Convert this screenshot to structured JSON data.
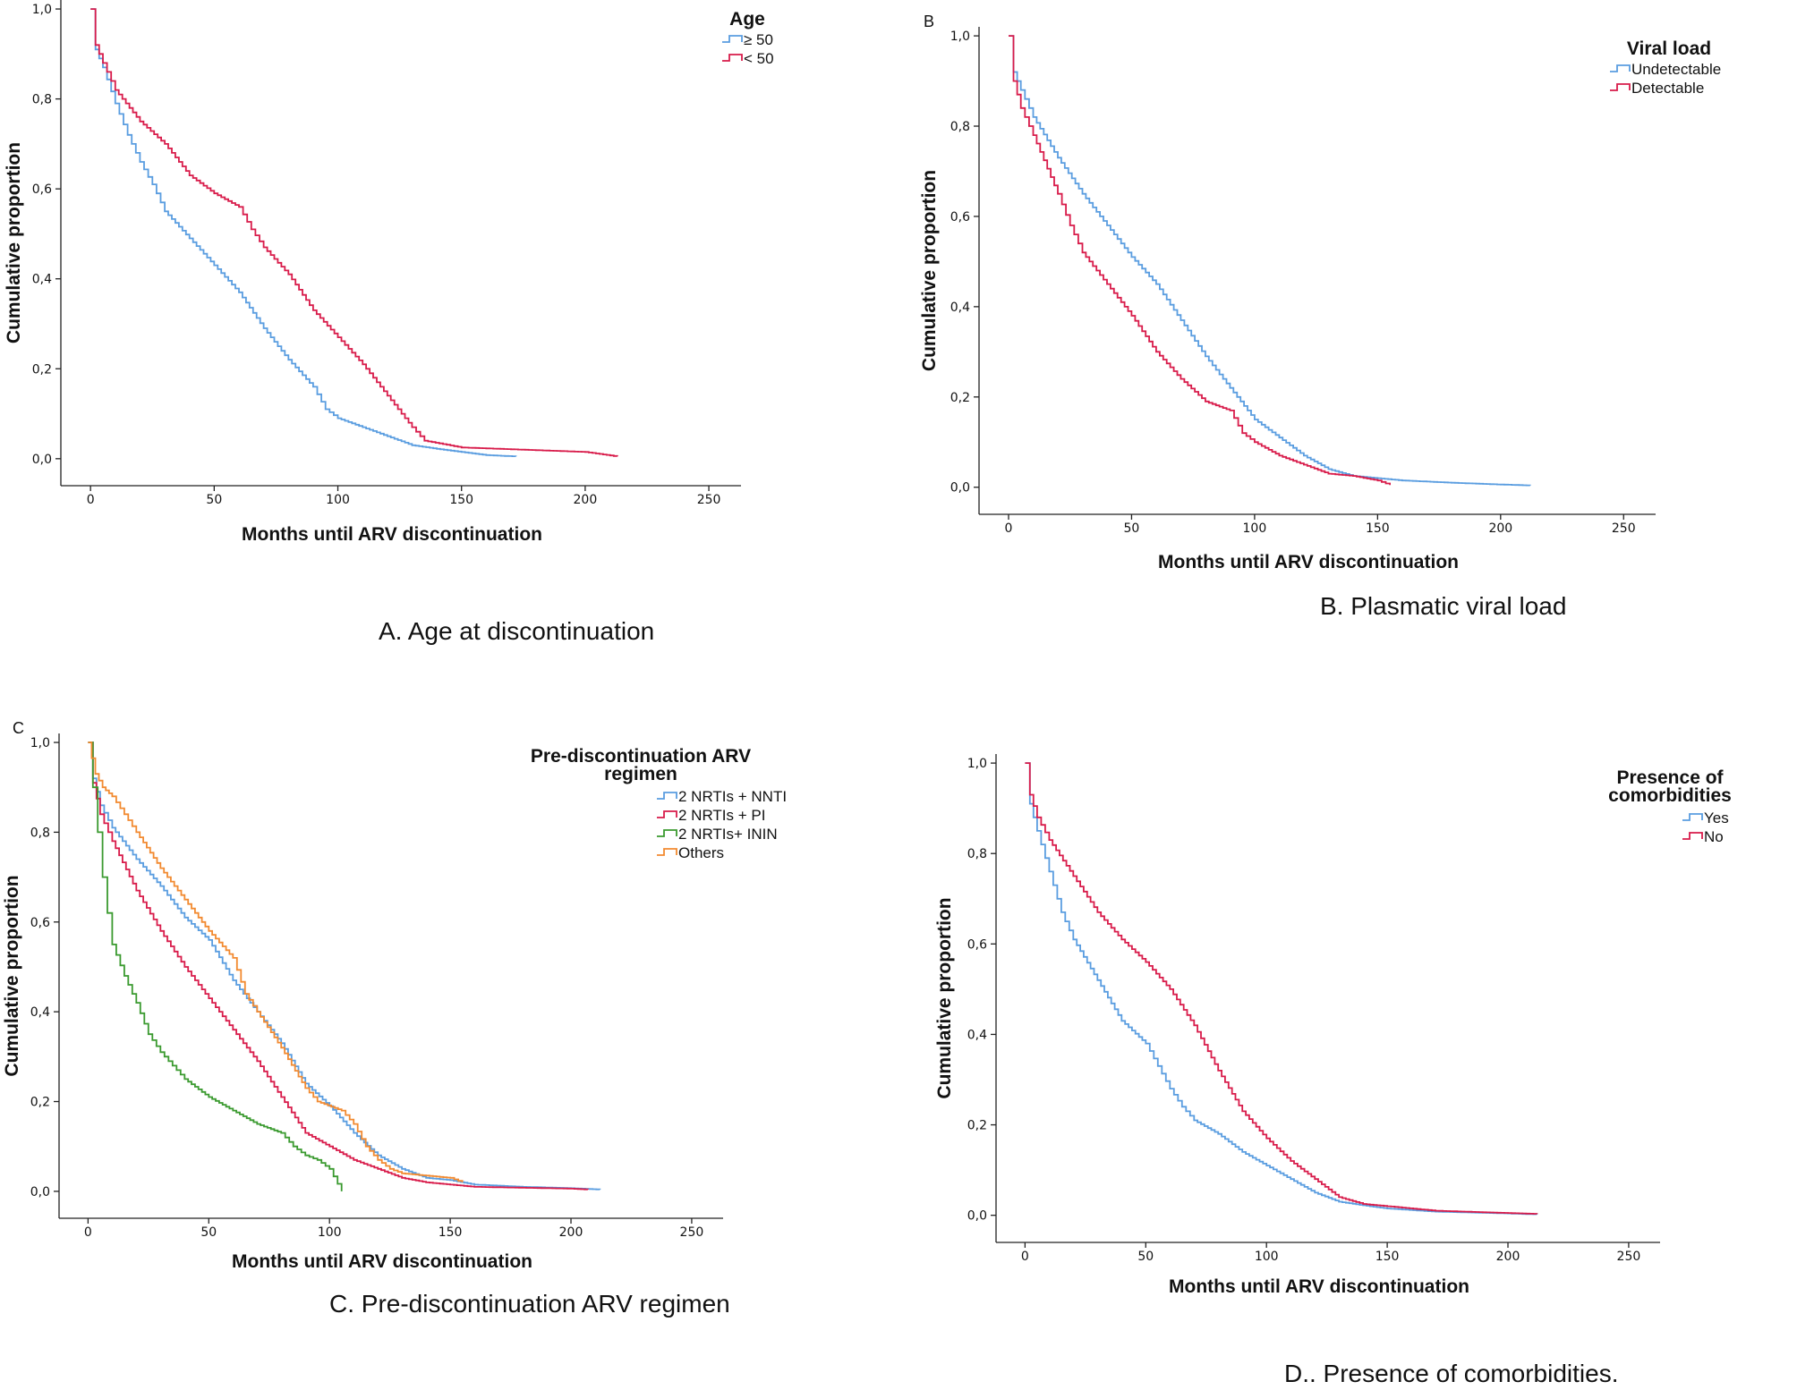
{
  "colors": {
    "blue": "#5a9de0",
    "red": "#d81b4a",
    "green": "#3a9a2f",
    "orange": "#f28a30"
  },
  "chart_data": [
    {
      "type": "line",
      "step": true,
      "panel_letter": "",
      "caption": "A.   Age at discontinuation",
      "xlabel": "Months until ARV discontinuation",
      "ylabel": "Cumulative proportion",
      "xlim": [
        -12,
        263
      ],
      "ylim": [
        -0.06,
        1.02
      ],
      "x_ticks": [
        "0",
        "50",
        "100",
        "150",
        "200",
        "250"
      ],
      "y_ticks": [
        "0,0",
        "0,2",
        "0,4",
        "0,6",
        "0,8",
        "1,0"
      ],
      "legend": {
        "title": "Age",
        "position": "top-right"
      },
      "series": [
        {
          "name": "≥ 50",
          "color": "blue",
          "x": [
            0,
            2,
            5,
            10,
            15,
            20,
            25,
            30,
            40,
            50,
            60,
            70,
            80,
            90,
            95,
            100,
            110,
            120,
            130,
            140,
            150,
            160,
            172
          ],
          "y": [
            1.0,
            0.91,
            0.87,
            0.79,
            0.72,
            0.66,
            0.61,
            0.55,
            0.49,
            0.43,
            0.37,
            0.29,
            0.22,
            0.16,
            0.11,
            0.09,
            0.07,
            0.05,
            0.03,
            0.022,
            0.015,
            0.008,
            0.005
          ]
        },
        {
          "name": "< 50",
          "color": "red",
          "x": [
            0,
            2,
            5,
            10,
            20,
            30,
            40,
            50,
            60,
            65,
            70,
            80,
            90,
            100,
            110,
            120,
            130,
            135,
            150,
            200,
            213
          ],
          "y": [
            1.0,
            0.92,
            0.88,
            0.82,
            0.75,
            0.7,
            0.63,
            0.59,
            0.56,
            0.51,
            0.47,
            0.41,
            0.33,
            0.27,
            0.21,
            0.14,
            0.07,
            0.04,
            0.025,
            0.015,
            0.005
          ]
        }
      ]
    },
    {
      "type": "line",
      "step": true,
      "panel_letter": "B",
      "caption": "B. Plasmatic viral load",
      "xlabel": "Months until ARV discontinuation",
      "ylabel": "Cumulative proportion",
      "xlim": [
        -12,
        263
      ],
      "ylim": [
        -0.06,
        1.02
      ],
      "x_ticks": [
        "0",
        "50",
        "100",
        "150",
        "200",
        "250"
      ],
      "y_ticks": [
        "0,0",
        "0,2",
        "0,4",
        "0,6",
        "0,8",
        "1,0"
      ],
      "legend": {
        "title": "Viral load",
        "position": "top-right"
      },
      "series": [
        {
          "name": "Undetectable",
          "color": "blue",
          "x": [
            0,
            2,
            5,
            10,
            20,
            30,
            40,
            50,
            60,
            70,
            80,
            90,
            100,
            110,
            120,
            130,
            140,
            150,
            160,
            180,
            200,
            212
          ],
          "y": [
            1.0,
            0.92,
            0.88,
            0.82,
            0.73,
            0.65,
            0.58,
            0.51,
            0.45,
            0.37,
            0.29,
            0.22,
            0.15,
            0.11,
            0.07,
            0.04,
            0.025,
            0.02,
            0.015,
            0.01,
            0.006,
            0.004
          ]
        },
        {
          "name": "Detectable",
          "color": "red",
          "x": [
            0,
            2,
            5,
            10,
            20,
            25,
            30,
            40,
            50,
            60,
            70,
            80,
            90,
            95,
            100,
            110,
            120,
            130,
            140,
            150,
            155
          ],
          "y": [
            1.0,
            0.9,
            0.84,
            0.78,
            0.65,
            0.58,
            0.52,
            0.45,
            0.38,
            0.3,
            0.24,
            0.19,
            0.17,
            0.12,
            0.1,
            0.07,
            0.05,
            0.03,
            0.025,
            0.015,
            0.005
          ]
        }
      ]
    },
    {
      "type": "line",
      "step": true,
      "panel_letter": "C",
      "caption": "C.   Pre-discontinuation ARV regimen",
      "xlabel": "Months until ARV discontinuation",
      "ylabel": "Cumulative proportion",
      "xlim": [
        -12,
        263
      ],
      "ylim": [
        -0.06,
        1.02
      ],
      "x_ticks": [
        "0",
        "50",
        "100",
        "150",
        "200",
        "250"
      ],
      "y_ticks": [
        "0,0",
        "0,2",
        "0,4",
        "0,6",
        "0,8",
        "1,0"
      ],
      "legend": {
        "title": "Pre-discontinuation ARV regimen",
        "position": "top-right"
      },
      "series": [
        {
          "name": "2 NRTIs + NNTI",
          "color": "blue",
          "x": [
            0,
            2,
            5,
            10,
            20,
            30,
            40,
            50,
            60,
            70,
            80,
            90,
            100,
            110,
            120,
            130,
            140,
            150,
            160,
            180,
            200,
            212
          ],
          "y": [
            1.0,
            0.92,
            0.86,
            0.81,
            0.74,
            0.68,
            0.61,
            0.56,
            0.47,
            0.4,
            0.33,
            0.24,
            0.19,
            0.13,
            0.08,
            0.05,
            0.03,
            0.025,
            0.015,
            0.01,
            0.007,
            0.004
          ]
        },
        {
          "name": "2 NRTIs + PI",
          "color": "red",
          "x": [
            0,
            2,
            5,
            10,
            20,
            30,
            40,
            50,
            60,
            70,
            80,
            90,
            100,
            110,
            120,
            130,
            140,
            150,
            160,
            180,
            200,
            207
          ],
          "y": [
            1.0,
            0.91,
            0.84,
            0.78,
            0.67,
            0.58,
            0.5,
            0.43,
            0.36,
            0.29,
            0.21,
            0.13,
            0.1,
            0.07,
            0.05,
            0.03,
            0.02,
            0.015,
            0.01,
            0.008,
            0.006,
            0.004
          ]
        },
        {
          "name": "2 NRTIs+ ININ",
          "color": "green",
          "x": [
            0,
            2,
            4,
            6,
            8,
            10,
            15,
            20,
            25,
            30,
            35,
            40,
            50,
            60,
            70,
            80,
            85,
            90,
            95,
            100,
            105
          ],
          "y": [
            1.0,
            0.9,
            0.8,
            0.7,
            0.62,
            0.55,
            0.48,
            0.42,
            0.35,
            0.31,
            0.28,
            0.25,
            0.21,
            0.18,
            0.15,
            0.13,
            0.1,
            0.08,
            0.07,
            0.05,
            0.0
          ]
        },
        {
          "name": "Others",
          "color": "orange",
          "x": [
            0,
            3,
            6,
            10,
            15,
            20,
            30,
            40,
            50,
            60,
            65,
            70,
            80,
            90,
            95,
            105,
            110,
            115,
            120,
            125,
            130,
            140,
            150,
            155
          ],
          "y": [
            1.0,
            0.93,
            0.9,
            0.88,
            0.84,
            0.8,
            0.72,
            0.65,
            0.58,
            0.52,
            0.44,
            0.4,
            0.32,
            0.23,
            0.2,
            0.18,
            0.15,
            0.1,
            0.07,
            0.05,
            0.04,
            0.035,
            0.03,
            0.02
          ]
        }
      ]
    },
    {
      "type": "line",
      "step": true,
      "panel_letter": "",
      "caption": "D.. Presence of comorbidities.",
      "xlabel": "Months until ARV discontinuation",
      "ylabel": "Cumulative proportion",
      "xlim": [
        -12,
        263
      ],
      "ylim": [
        -0.06,
        1.02
      ],
      "x_ticks": [
        "0",
        "50",
        "100",
        "150",
        "200",
        "250"
      ],
      "y_ticks": [
        "0,0",
        "0,2",
        "0,4",
        "0,6",
        "0,8",
        "1,0"
      ],
      "legend": {
        "title": "Presence of comorbidities",
        "position": "top-right"
      },
      "series": [
        {
          "name": "Yes",
          "color": "blue",
          "x": [
            0,
            2,
            5,
            10,
            15,
            20,
            30,
            40,
            50,
            55,
            60,
            65,
            70,
            80,
            90,
            100,
            110,
            120,
            130,
            140,
            150,
            170,
            200,
            212
          ],
          "y": [
            1.0,
            0.91,
            0.85,
            0.76,
            0.67,
            0.61,
            0.52,
            0.43,
            0.38,
            0.33,
            0.28,
            0.24,
            0.21,
            0.18,
            0.14,
            0.11,
            0.08,
            0.05,
            0.03,
            0.022,
            0.015,
            0.008,
            0.004,
            0.002
          ]
        },
        {
          "name": "No",
          "color": "red",
          "x": [
            0,
            2,
            5,
            10,
            20,
            30,
            40,
            50,
            60,
            70,
            80,
            90,
            100,
            110,
            120,
            130,
            140,
            150,
            170,
            200,
            212
          ],
          "y": [
            1.0,
            0.93,
            0.88,
            0.83,
            0.75,
            0.67,
            0.61,
            0.56,
            0.5,
            0.42,
            0.32,
            0.23,
            0.17,
            0.12,
            0.08,
            0.04,
            0.025,
            0.02,
            0.01,
            0.005,
            0.003
          ]
        }
      ]
    }
  ]
}
